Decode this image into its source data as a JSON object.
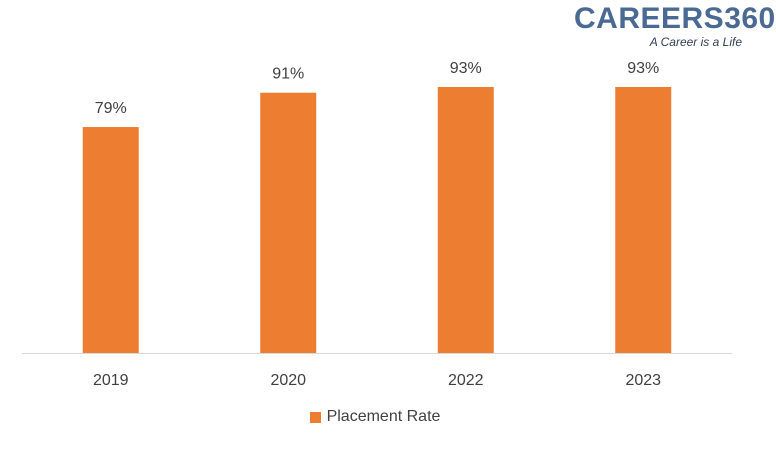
{
  "logo": {
    "name": "CAREERS360",
    "tagline": "A Career is a Life"
  },
  "chart_data": {
    "type": "bar",
    "categories": [
      "2019",
      "2020",
      "2022",
      "2023"
    ],
    "series": [
      {
        "name": "Placement Rate",
        "values": [
          79,
          91,
          93,
          93
        ],
        "labels": [
          "79%",
          "91%",
          "93%",
          "93%"
        ],
        "color": "#ED7D31"
      }
    ],
    "ylim": [
      0,
      100
    ],
    "grid": false,
    "legend": "bottom",
    "title": "",
    "xlabel": "",
    "ylabel": ""
  }
}
